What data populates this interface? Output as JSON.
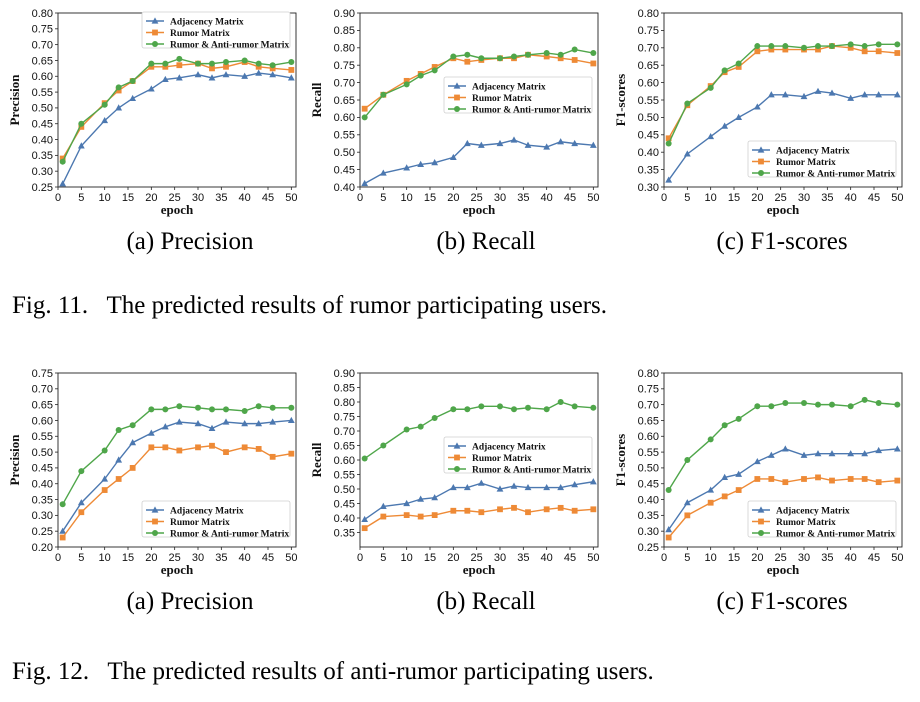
{
  "figures": [
    {
      "caption": "Fig. 11.   The predicted results of rumor participating users.",
      "subcaptions": [
        "(a) Precision",
        "(b) Recall",
        "(c) F1-scores"
      ]
    },
    {
      "caption": "Fig. 12.   The predicted results of anti-rumor participating users.",
      "subcaptions": [
        "(a) Precision",
        "(b) Recall",
        "(c) F1-scores"
      ]
    }
  ],
  "colors": {
    "Adjacency Matrix": "#4c78b0",
    "Rumor Matrix": "#ee8a36",
    "Rumor & Anti-rumor Matrix": "#4fa64a"
  },
  "chart_data": [
    {
      "type": "line",
      "xlabel": "epoch",
      "ylabel": "Precision",
      "x": [
        1,
        5,
        10,
        13,
        16,
        20,
        23,
        26,
        30,
        33,
        36,
        40,
        43,
        46,
        50
      ],
      "xticks": [
        0,
        5,
        10,
        15,
        20,
        25,
        30,
        35,
        40,
        45,
        50
      ],
      "xlim": [
        0,
        51
      ],
      "yticks": [
        0.25,
        0.3,
        0.35,
        0.4,
        0.45,
        0.5,
        0.55,
        0.6,
        0.65,
        0.7,
        0.75,
        0.8
      ],
      "ylim": [
        0.25,
        0.8
      ],
      "legend": "top-right",
      "series": [
        {
          "name": "Adjacency Matrix",
          "marker": "triangle",
          "values": [
            0.26,
            0.38,
            0.46,
            0.5,
            0.53,
            0.56,
            0.59,
            0.595,
            0.605,
            0.595,
            0.605,
            0.6,
            0.61,
            0.605,
            0.595
          ]
        },
        {
          "name": "Rumor Matrix",
          "marker": "square",
          "values": [
            0.34,
            0.44,
            0.515,
            0.555,
            0.585,
            0.63,
            0.63,
            0.635,
            0.64,
            0.625,
            0.63,
            0.645,
            0.63,
            0.625,
            0.62
          ]
        },
        {
          "name": "Rumor & Anti-rumor Matrix",
          "marker": "circle",
          "values": [
            0.33,
            0.45,
            0.51,
            0.565,
            0.585,
            0.64,
            0.64,
            0.655,
            0.64,
            0.64,
            0.645,
            0.65,
            0.64,
            0.635,
            0.645
          ]
        }
      ]
    },
    {
      "type": "line",
      "xlabel": "epoch",
      "ylabel": "Recall",
      "x": [
        1,
        5,
        10,
        13,
        16,
        20,
        23,
        26,
        30,
        33,
        36,
        40,
        43,
        46,
        50
      ],
      "xticks": [
        0,
        5,
        10,
        15,
        20,
        25,
        30,
        35,
        40,
        45,
        50
      ],
      "xlim": [
        0,
        51
      ],
      "yticks": [
        0.4,
        0.45,
        0.5,
        0.55,
        0.6,
        0.65,
        0.7,
        0.75,
        0.8,
        0.85,
        0.9
      ],
      "ylim": [
        0.4,
        0.9
      ],
      "legend": "center-right",
      "series": [
        {
          "name": "Adjacency Matrix",
          "marker": "triangle",
          "values": [
            0.41,
            0.44,
            0.455,
            0.465,
            0.47,
            0.485,
            0.525,
            0.52,
            0.525,
            0.535,
            0.52,
            0.515,
            0.53,
            0.525,
            0.52
          ]
        },
        {
          "name": "Rumor Matrix",
          "marker": "square",
          "values": [
            0.625,
            0.665,
            0.705,
            0.725,
            0.745,
            0.77,
            0.76,
            0.765,
            0.77,
            0.77,
            0.78,
            0.775,
            0.77,
            0.765,
            0.755
          ]
        },
        {
          "name": "Rumor & Anti-rumor Matrix",
          "marker": "circle",
          "values": [
            0.6,
            0.665,
            0.695,
            0.72,
            0.735,
            0.775,
            0.78,
            0.77,
            0.77,
            0.775,
            0.78,
            0.785,
            0.78,
            0.795,
            0.785
          ]
        }
      ]
    },
    {
      "type": "line",
      "xlabel": "epoch",
      "ylabel": "F1-scores",
      "x": [
        1,
        5,
        10,
        13,
        16,
        20,
        23,
        26,
        30,
        33,
        36,
        40,
        43,
        46,
        50
      ],
      "xticks": [
        0,
        5,
        10,
        15,
        20,
        25,
        30,
        35,
        40,
        45,
        50
      ],
      "xlim": [
        0,
        51
      ],
      "yticks": [
        0.3,
        0.35,
        0.4,
        0.45,
        0.5,
        0.55,
        0.6,
        0.65,
        0.7,
        0.75,
        0.8
      ],
      "ylim": [
        0.3,
        0.8
      ],
      "legend": "bottom-right",
      "series": [
        {
          "name": "Adjacency Matrix",
          "marker": "triangle",
          "values": [
            0.32,
            0.395,
            0.445,
            0.475,
            0.5,
            0.53,
            0.565,
            0.565,
            0.56,
            0.575,
            0.57,
            0.555,
            0.565,
            0.565,
            0.565
          ]
        },
        {
          "name": "Rumor Matrix",
          "marker": "square",
          "values": [
            0.44,
            0.535,
            0.59,
            0.63,
            0.645,
            0.69,
            0.695,
            0.695,
            0.695,
            0.695,
            0.705,
            0.7,
            0.69,
            0.69,
            0.685
          ]
        },
        {
          "name": "Rumor & Anti-rumor Matrix",
          "marker": "circle",
          "values": [
            0.425,
            0.54,
            0.585,
            0.635,
            0.655,
            0.705,
            0.705,
            0.705,
            0.7,
            0.705,
            0.705,
            0.71,
            0.705,
            0.71,
            0.71
          ]
        }
      ]
    },
    {
      "type": "line",
      "xlabel": "epoch",
      "ylabel": "Precision",
      "x": [
        1,
        5,
        10,
        13,
        16,
        20,
        23,
        26,
        30,
        33,
        36,
        40,
        43,
        46,
        50
      ],
      "xticks": [
        0,
        5,
        10,
        15,
        20,
        25,
        30,
        35,
        40,
        45,
        50
      ],
      "xlim": [
        0,
        51
      ],
      "yticks": [
        0.2,
        0.25,
        0.3,
        0.35,
        0.4,
        0.45,
        0.5,
        0.55,
        0.6,
        0.65,
        0.7,
        0.75
      ],
      "ylim": [
        0.2,
        0.75
      ],
      "legend": "bottom-right",
      "series": [
        {
          "name": "Adjacency Matrix",
          "marker": "triangle",
          "values": [
            0.25,
            0.34,
            0.415,
            0.475,
            0.53,
            0.56,
            0.58,
            0.595,
            0.59,
            0.575,
            0.595,
            0.59,
            0.59,
            0.595,
            0.6
          ]
        },
        {
          "name": "Rumor Matrix",
          "marker": "square",
          "values": [
            0.23,
            0.31,
            0.38,
            0.415,
            0.45,
            0.515,
            0.515,
            0.505,
            0.515,
            0.52,
            0.5,
            0.515,
            0.51,
            0.485,
            0.495
          ]
        },
        {
          "name": "Rumor & Anti-rumor Matrix",
          "marker": "circle",
          "values": [
            0.335,
            0.44,
            0.505,
            0.57,
            0.585,
            0.635,
            0.635,
            0.645,
            0.64,
            0.635,
            0.635,
            0.63,
            0.645,
            0.64,
            0.64
          ]
        }
      ]
    },
    {
      "type": "line",
      "xlabel": "epoch",
      "ylabel": "Recall",
      "x": [
        1,
        5,
        10,
        13,
        16,
        20,
        23,
        26,
        30,
        33,
        36,
        40,
        43,
        46,
        50
      ],
      "xticks": [
        0,
        5,
        10,
        15,
        20,
        25,
        30,
        35,
        40,
        45,
        50
      ],
      "xlim": [
        0,
        51
      ],
      "yticks": [
        0.35,
        0.4,
        0.45,
        0.5,
        0.55,
        0.6,
        0.65,
        0.7,
        0.75,
        0.8,
        0.85,
        0.9
      ],
      "ylim": [
        0.3,
        0.9
      ],
      "legend": "center-right",
      "series": [
        {
          "name": "Adjacency Matrix",
          "marker": "triangle",
          "values": [
            0.395,
            0.44,
            0.45,
            0.465,
            0.47,
            0.505,
            0.505,
            0.52,
            0.5,
            0.51,
            0.505,
            0.505,
            0.505,
            0.515,
            0.525
          ]
        },
        {
          "name": "Rumor Matrix",
          "marker": "square",
          "values": [
            0.365,
            0.405,
            0.41,
            0.405,
            0.41,
            0.425,
            0.425,
            0.42,
            0.43,
            0.435,
            0.42,
            0.43,
            0.435,
            0.425,
            0.43
          ]
        },
        {
          "name": "Rumor & Anti-rumor Matrix",
          "marker": "circle",
          "values": [
            0.605,
            0.65,
            0.705,
            0.715,
            0.745,
            0.775,
            0.775,
            0.785,
            0.785,
            0.775,
            0.78,
            0.775,
            0.8,
            0.785,
            0.78
          ]
        }
      ]
    },
    {
      "type": "line",
      "xlabel": "epoch",
      "ylabel": "F1-scores",
      "x": [
        1,
        5,
        10,
        13,
        16,
        20,
        23,
        26,
        30,
        33,
        36,
        40,
        43,
        46,
        50
      ],
      "xticks": [
        0,
        5,
        10,
        15,
        20,
        25,
        30,
        35,
        40,
        45,
        50
      ],
      "xlim": [
        0,
        51
      ],
      "yticks": [
        0.25,
        0.3,
        0.35,
        0.4,
        0.45,
        0.5,
        0.55,
        0.6,
        0.65,
        0.7,
        0.75,
        0.8
      ],
      "ylim": [
        0.25,
        0.8
      ],
      "legend": "bottom-right",
      "series": [
        {
          "name": "Adjacency Matrix",
          "marker": "triangle",
          "values": [
            0.305,
            0.39,
            0.43,
            0.47,
            0.48,
            0.52,
            0.54,
            0.56,
            0.54,
            0.545,
            0.545,
            0.545,
            0.545,
            0.555,
            0.56
          ]
        },
        {
          "name": "Rumor Matrix",
          "marker": "square",
          "values": [
            0.28,
            0.35,
            0.39,
            0.41,
            0.43,
            0.465,
            0.465,
            0.455,
            0.465,
            0.47,
            0.46,
            0.465,
            0.465,
            0.455,
            0.46
          ]
        },
        {
          "name": "Rumor & Anti-rumor Matrix",
          "marker": "circle",
          "values": [
            0.43,
            0.525,
            0.59,
            0.635,
            0.655,
            0.695,
            0.695,
            0.705,
            0.705,
            0.7,
            0.7,
            0.695,
            0.715,
            0.705,
            0.7
          ]
        }
      ]
    }
  ]
}
